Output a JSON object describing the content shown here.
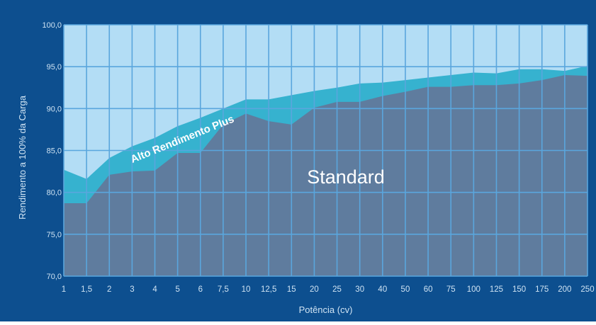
{
  "colors": {
    "frame": "#0d4f8f",
    "plot_background": "#b3ddf5",
    "standard_fill": "#5f7c9e",
    "plus_fill": "#36b2cf",
    "grid": "#5aa6dd",
    "text": "#cfe3f3"
  },
  "chart_data": {
    "type": "area",
    "title": "",
    "xlabel": "Potência (cv)",
    "ylabel": "Rendimento a 100% da Carga",
    "ylim": [
      70,
      100
    ],
    "y_ticks": [
      "70,0",
      "75,0",
      "80,0",
      "85,0",
      "90,0",
      "95,0",
      "100,0"
    ],
    "y_tick_values": [
      70,
      75,
      80,
      85,
      90,
      95,
      100
    ],
    "categories": [
      "1",
      "1,5",
      "2",
      "3",
      "4",
      "5",
      "6",
      "7,5",
      "10",
      "12,5",
      "15",
      "20",
      "25",
      "30",
      "40",
      "50",
      "60",
      "75",
      "100",
      "125",
      "150",
      "175",
      "200",
      "250"
    ],
    "grid": true,
    "series": [
      {
        "name": "Standard",
        "values": [
          78.7,
          78.7,
          82.1,
          82.5,
          82.6,
          84.7,
          84.7,
          88.1,
          89.4,
          88.5,
          88.1,
          90.1,
          90.8,
          90.8,
          91.5,
          92.0,
          92.6,
          92.6,
          92.8,
          92.8,
          93.0,
          93.4,
          94.0,
          93.9
        ]
      },
      {
        "name": "Alto Rendimento Plus",
        "values": [
          82.7,
          81.6,
          84.1,
          85.5,
          86.5,
          87.9,
          88.9,
          90.0,
          91.1,
          91.1,
          91.6,
          92.1,
          92.5,
          93.0,
          93.1,
          93.4,
          93.7,
          94.0,
          94.3,
          94.2,
          94.7,
          94.7,
          94.5,
          95.1
        ]
      }
    ]
  }
}
